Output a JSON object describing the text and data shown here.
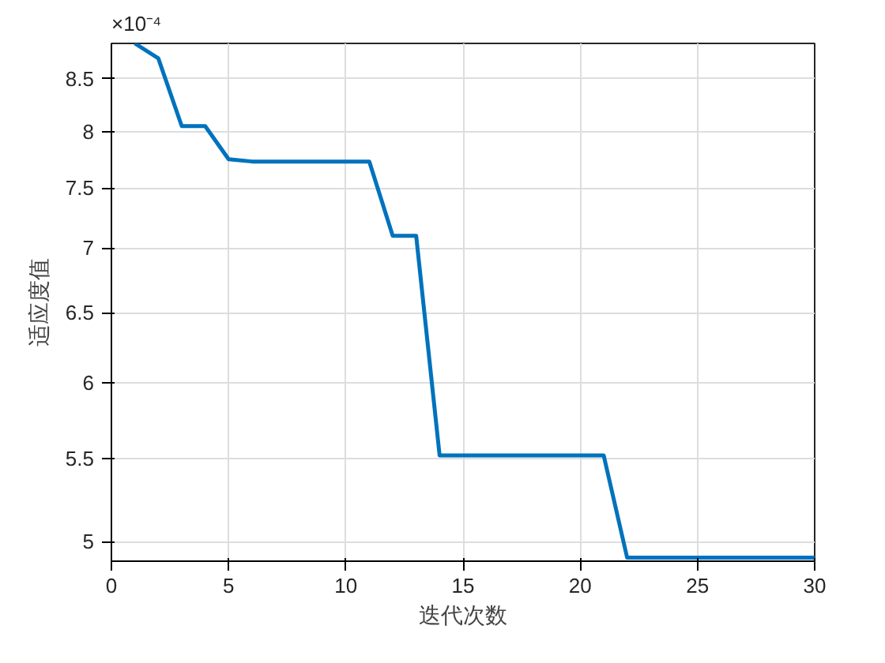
{
  "chart_data": {
    "type": "line",
    "x": [
      1,
      2,
      3,
      4,
      5,
      6,
      7,
      8,
      9,
      10,
      11,
      12,
      13,
      14,
      15,
      16,
      17,
      18,
      19,
      20,
      21,
      22,
      23,
      24,
      25,
      26,
      27,
      28,
      29,
      30
    ],
    "series": [
      {
        "color": "#0072bd",
        "values": [
          8.85,
          8.7,
          8.05,
          8.05,
          7.75,
          7.73,
          7.73,
          7.73,
          7.73,
          7.73,
          7.73,
          7.1,
          7.1,
          5.52,
          5.52,
          5.52,
          5.52,
          5.52,
          5.52,
          5.52,
          5.52,
          4.91,
          4.91,
          4.91,
          4.91,
          4.91,
          4.91,
          4.91,
          4.91,
          4.91
        ]
      }
    ],
    "xlabel": "迭代次数",
    "ylabel": "适应度值",
    "annotations": [
      "×10⁻⁴"
    ],
    "xlim": [
      0,
      30
    ],
    "xticks": [
      0,
      5,
      10,
      15,
      20,
      25,
      30
    ],
    "ylim": [
      4.89,
      8.85
    ],
    "yticks": [
      5,
      5.5,
      6,
      6.5,
      7,
      7.5,
      8,
      8.5
    ],
    "log": "y",
    "grid": true,
    "marker": "none",
    "line_style": "solid"
  }
}
